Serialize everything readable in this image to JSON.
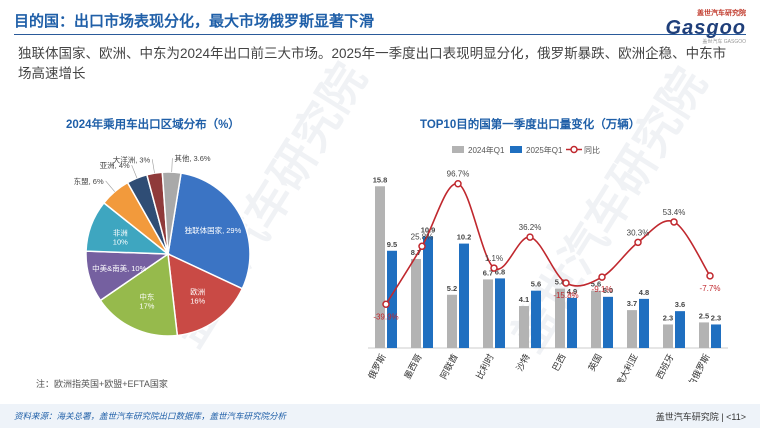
{
  "header": {
    "title": "目的国：出口市场表现分化，最大市场俄罗斯显著下滑",
    "logo_small": "盖世汽车研究院",
    "logo_big": "Gasgoo",
    "logo_tag": "盖世汽车 GASGOO"
  },
  "summary": "独联体国家、欧洲、中东为2024年出口前三大市场。2025年一季度出口表现明显分化，俄罗斯暴跌、欧洲企稳、中东市场高速增长",
  "pie_title": "2024年乘用车出口区域分布（%）",
  "bar_title": "TOP10目的国第一季度出口量变化（万辆）",
  "note": "注：欧洲指英国+欧盟+EFTA国家",
  "footer": {
    "source": "资料来源：海关总署，盖世汽车研究院出口数据库，盖世汽车研究院分析",
    "brand": "盖世汽车研究院",
    "page": "<11>"
  },
  "watermarks": [
    "盖世汽车研究院",
    "盖世汽车研究院"
  ],
  "chart_data": [
    {
      "type": "pie",
      "title": "2024年乘用车出口区域分布（%）",
      "slices": [
        {
          "label": "独联体国家, 29%",
          "value": 29,
          "color": "#3b74c4"
        },
        {
          "label": "欧洲, 16%",
          "value": 16,
          "color": "#c94a45"
        },
        {
          "label": "中东, 17%",
          "value": 17,
          "color": "#96ba4c"
        },
        {
          "label": "中美&南美, 10%",
          "value": 10,
          "color": "#7560a0"
        },
        {
          "label": "非洲, 10%",
          "value": 10,
          "color": "#3ea6c0"
        },
        {
          "label": "东盟, 6%",
          "value": 6,
          "color": "#f29a3c"
        },
        {
          "label": "亚洲, 4%",
          "value": 4,
          "color": "#2f4d75"
        },
        {
          "label": "大洋洲, 3%",
          "value": 3,
          "color": "#8f3a3a"
        },
        {
          "label": "其他, 3.6%",
          "value": 3.6,
          "color": "#a9a9a9"
        }
      ]
    },
    {
      "type": "bar",
      "title": "TOP10目的国第一季度出口量变化（万辆）",
      "categories": [
        "俄罗斯",
        "墨西哥",
        "阿联酋",
        "比利时",
        "沙特",
        "巴西",
        "英国",
        "澳大利亚",
        "西班牙",
        "白俄罗斯"
      ],
      "series": [
        {
          "name": "2024年Q1",
          "values": [
            15.8,
            8.7,
            5.2,
            6.7,
            4.1,
            5.8,
            5.6,
            3.7,
            2.3,
            2.5
          ],
          "color": "#b3b3b3"
        },
        {
          "name": "2025年Q1",
          "values": [
            9.5,
            10.9,
            10.2,
            6.8,
            5.6,
            4.9,
            5.0,
            4.8,
            3.6,
            2.3
          ],
          "color": "#1f6fc0"
        }
      ],
      "line": {
        "name": "同比",
        "values": [
          -39.9,
          25.8,
          96.7,
          1.1,
          36.2,
          -15.8,
          -9.1,
          30.3,
          53.4,
          -7.7
        ],
        "labels": [
          "-39.9%",
          "25.8%",
          "96.7%",
          "1.1%",
          "36.2%",
          "-15.8%",
          "-9.1%",
          "30.3%",
          "53.4%",
          "-7.7%"
        ],
        "color": "#c0282e"
      },
      "ylim": [
        0,
        17
      ],
      "line_ylim": [
        -60,
        110
      ],
      "legend_position": "top"
    }
  ]
}
